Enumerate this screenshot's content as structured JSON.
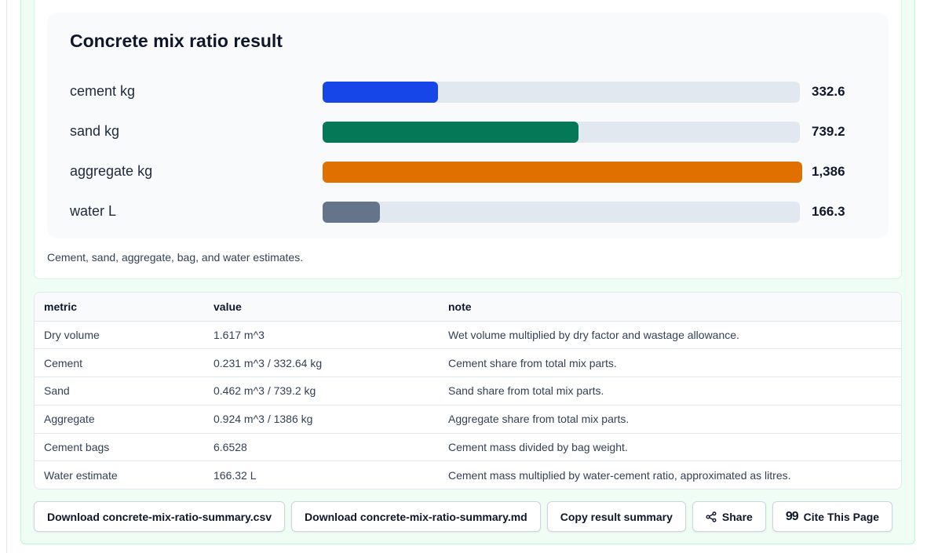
{
  "result_card": {
    "title": "Concrete mix ratio result",
    "caption": "Cement, sand, aggregate, bag, and water estimates."
  },
  "chart_data": {
    "type": "bar",
    "orientation": "horizontal",
    "title": "Concrete mix ratio result",
    "categories": [
      "cement kg",
      "sand kg",
      "aggregate kg",
      "water L"
    ],
    "values": [
      332.6,
      739.2,
      1386,
      166.3
    ],
    "value_labels": [
      "332.6",
      "739.2",
      "1,386",
      "166.3"
    ],
    "colors": [
      "#1746e8",
      "#047857",
      "#e07000",
      "#64748b"
    ],
    "track_color": "#e2e8f0",
    "xlim": [
      0,
      1386
    ],
    "grid": false
  },
  "table": {
    "headers": [
      "metric",
      "value",
      "note"
    ],
    "rows": [
      [
        "Dry volume",
        "1.617 m^3",
        "Wet volume multiplied by dry factor and wastage allowance."
      ],
      [
        "Cement",
        "0.231 m^3 / 332.64 kg",
        "Cement share from total mix parts."
      ],
      [
        "Sand",
        "0.462 m^3 / 739.2 kg",
        "Sand share from total mix parts."
      ],
      [
        "Aggregate",
        "0.924 m^3 / 1386 kg",
        "Aggregate share from total mix parts."
      ],
      [
        "Cement bags",
        "6.6528",
        "Cement mass divided by bag weight."
      ],
      [
        "Water estimate",
        "166.32 L",
        "Cement mass multiplied by water-cement ratio, approximated as litres."
      ]
    ]
  },
  "actions": {
    "download_csv": "Download concrete-mix-ratio-summary.csv",
    "download_md": "Download concrete-mix-ratio-summary.md",
    "copy_summary": "Copy result summary",
    "share": "Share",
    "share_icon": "share-icon",
    "cite": "Cite This Page",
    "cite_icon": "quote-icon"
  }
}
